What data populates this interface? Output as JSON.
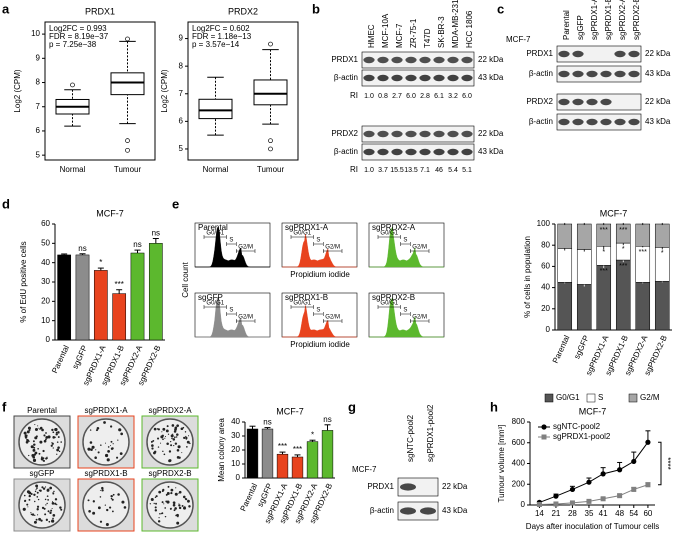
{
  "panel_labels": [
    "a",
    "b",
    "c",
    "d",
    "e",
    "f",
    "g",
    "h"
  ],
  "chart_data": [
    {
      "type": "box",
      "title": "PRDX1",
      "y_label": "Log2 (CPM)",
      "categories": [
        "Normal",
        "Tumour"
      ],
      "boxes": [
        {
          "low": 6.2,
          "q1": 6.7,
          "median": 7.0,
          "q3": 7.3,
          "high": 7.7,
          "outliers": [
            7.9
          ]
        },
        {
          "low": 6.3,
          "q1": 7.5,
          "median": 8.0,
          "q3": 8.4,
          "high": 9.7,
          "outliers": [
            9.8,
            5.6,
            5.2
          ]
        }
      ],
      "ylim": [
        4.8,
        10.5
      ],
      "yticks": [
        5,
        6,
        7,
        8,
        9,
        10
      ],
      "annotations": [
        "Log2FC = 0.993",
        "FDR = 8.19e−37",
        "p = 7.25e−38"
      ]
    },
    {
      "type": "box",
      "title": "PRDX2",
      "y_label": "Log2 (CPM)",
      "categories": [
        "Normal",
        "Tumour"
      ],
      "boxes": [
        {
          "low": 5.5,
          "q1": 6.1,
          "median": 6.4,
          "q3": 6.8,
          "high": 7.6,
          "outliers": []
        },
        {
          "low": 5.9,
          "q1": 6.6,
          "median": 7.0,
          "q3": 7.5,
          "high": 8.6,
          "outliers": [
            8.8,
            5.3,
            5.0
          ]
        }
      ],
      "ylim": [
        4.6,
        9.6
      ],
      "yticks": [
        5,
        6,
        7,
        8,
        9
      ],
      "annotations": [
        "Log2FC = 0.602",
        "FDR = 1.18e−13",
        "p = 3.57e−14"
      ]
    },
    {
      "type": "bar",
      "title": "MCF-7",
      "y_label": "% of EdU positive cells",
      "categories": [
        "Parental",
        "sgGFP",
        "sgPRDX1-A",
        "sgPRDX1-B",
        "sgPRDX2-A",
        "sgPRDX2-B"
      ],
      "values": [
        44,
        44,
        36,
        24,
        45,
        50
      ],
      "errors": [
        0.5,
        0.6,
        1.2,
        2,
        1.5,
        2.5
      ],
      "colors": [
        "#000000",
        "#8c8c8c",
        "#e8431e",
        "#e8431e",
        "#5cb82e",
        "#5cb82e"
      ],
      "annotations": [
        null,
        "ns",
        "*",
        "***",
        "ns",
        "ns"
      ],
      "ylim": [
        0,
        60
      ],
      "yticks": [
        0,
        10,
        20,
        30,
        40,
        50,
        60
      ]
    },
    {
      "type": "stacked_bar",
      "title": "MCF-7",
      "y_label": "% of cells in population",
      "categories": [
        "Parental",
        "sgGFP",
        "sgPRDX1-A",
        "sgPRDX1-B",
        "sgPRDX2-A",
        "sgPRDX2-B"
      ],
      "series": [
        {
          "name": "G0/G1",
          "color": "#555555",
          "values": [
            45,
            43,
            61,
            66,
            45,
            46
          ],
          "errors": [
            1,
            2,
            3,
            2,
            1,
            1
          ],
          "annotations": [
            null,
            null,
            "***",
            "***",
            null,
            null
          ]
        },
        {
          "name": "S",
          "color": "#ffffff",
          "values": [
            32,
            33,
            18,
            16,
            34,
            32
          ],
          "errors": [
            2,
            2,
            3,
            2,
            1,
            2
          ],
          "annotations": [
            null,
            null,
            "*",
            "*",
            "***",
            "*"
          ]
        },
        {
          "name": "G2/M",
          "color": "#a6a6a6",
          "values": [
            23,
            24,
            21,
            18,
            21,
            22
          ],
          "errors": [
            1,
            1,
            1,
            1,
            1,
            1
          ],
          "annotations": [
            null,
            null,
            "***",
            "***",
            null,
            null
          ]
        }
      ],
      "ylim": [
        0,
        100
      ],
      "yticks": [
        0,
        20,
        40,
        60,
        80,
        100
      ],
      "legend": "bottom"
    },
    {
      "type": "bar",
      "title": "MCF-7",
      "y_label": "Mean colony area",
      "categories": [
        "Parental",
        "sgGFP",
        "sgPRDX1-A",
        "sgPRDX1-B",
        "sgPRDX2-A",
        "sgPRDX2-B"
      ],
      "values": [
        35,
        35,
        17,
        15,
        26,
        34
      ],
      "errors": [
        2,
        1,
        1.5,
        1.5,
        1,
        4
      ],
      "colors": [
        "#000000",
        "#8c8c8c",
        "#e8431e",
        "#e8431e",
        "#5cb82e",
        "#5cb82e"
      ],
      "annotations": [
        null,
        "ns",
        "***",
        "***",
        "*",
        "ns"
      ],
      "ylim": [
        0,
        40
      ],
      "yticks": [
        0,
        10,
        20,
        30,
        40
      ]
    },
    {
      "type": "line",
      "title": "MCF-7",
      "x_label": "Days after inoculation of Tumour cells",
      "y_label": "Tumour volume [mm³]",
      "x": [
        14,
        21,
        28,
        35,
        41,
        48,
        54,
        60
      ],
      "xlim": [
        10,
        63
      ],
      "xticks": [
        14,
        21,
        28,
        35,
        41,
        48,
        54,
        60
      ],
      "ylim": [
        0,
        800
      ],
      "yticks": [
        0,
        200,
        400,
        600,
        800
      ],
      "series": [
        {
          "name": "sgNTC-pool2",
          "color": "#000000",
          "marker": "circle",
          "values": [
            25,
            85,
            150,
            220,
            300,
            340,
            420,
            605
          ],
          "errors": [
            10,
            20,
            30,
            40,
            60,
            70,
            90,
            110
          ]
        },
        {
          "name": "sgPRDX1-pool2",
          "color": "#808080",
          "marker": "square",
          "values": [
            5,
            10,
            20,
            35,
            60,
            90,
            150,
            195
          ],
          "errors": [
            2,
            3,
            5,
            8,
            10,
            15,
            20,
            20
          ]
        }
      ],
      "annotation": "****",
      "legend": "upper left"
    }
  ],
  "blot_b": {
    "columns": [
      "HMEC",
      "MCF-10A",
      "MCF-7",
      "ZR-75-1",
      "T47D",
      "SK-BR-3",
      "MDA-MB-231",
      "HCC 1806"
    ],
    "groups": [
      {
        "rows": [
          {
            "label": "PRDX1",
            "size": "22 kDa"
          },
          {
            "label": "β-actin",
            "size": "43 kDa"
          }
        ],
        "ri_label": "RI",
        "ri": [
          "1.0",
          "0.8",
          "2.7",
          "6.0",
          "2.8",
          "6.1",
          "3.2",
          "6.0"
        ]
      },
      {
        "rows": [
          {
            "label": "PRDX2",
            "size": "22 kDa"
          },
          {
            "label": "β-actin",
            "size": "43 kDa"
          }
        ],
        "ri_label": "RI",
        "ri": [
          "1.0",
          "3.7",
          "15.5",
          "13.5",
          "7.1",
          "46",
          "5.4",
          "5.1"
        ]
      }
    ]
  },
  "blot_c": {
    "cell_line": "MCF-7",
    "columns": [
      "Parental",
      "sgGFP",
      "sgPRDX1-A",
      "sgPRDX1-B",
      "sgPRDX2-A",
      "sgPRDX2-B"
    ],
    "rows": [
      {
        "label": "PRDX1",
        "size": "22 kDa"
      },
      {
        "label": "β-actin",
        "size": "43 kDa"
      },
      {
        "label": "PRDX2",
        "size": "22 kDa"
      },
      {
        "label": "β-actin",
        "size": "43 kDa"
      }
    ]
  },
  "flow_e": {
    "panels": [
      {
        "title": "Parental",
        "color": "#000000"
      },
      {
        "title": "sgPRDX1-A",
        "color": "#e8431e"
      },
      {
        "title": "sgPRDX2-A",
        "color": "#5cb82e"
      },
      {
        "title": "sgGFP",
        "color": "#8c8c8c"
      },
      {
        "title": "sgPRDX1-B",
        "color": "#e8431e"
      },
      {
        "title": "sgPRDX2-B",
        "color": "#5cb82e"
      }
    ],
    "gates": [
      "G0/G1",
      "S",
      "G2/M"
    ],
    "y_label": "Cell count",
    "x_label": "Propidium iodide"
  },
  "plates_f": {
    "plates": [
      {
        "label": "Parental",
        "border": "#444444"
      },
      {
        "label": "sgPRDX1-A",
        "border": "#e8431e"
      },
      {
        "label": "sgPRDX2-A",
        "border": "#5cb82e"
      },
      {
        "label": "sgGFP",
        "border": "#8c8c8c"
      },
      {
        "label": "sgPRDX1-B",
        "border": "#e8431e"
      },
      {
        "label": "sgPRDX2-B",
        "border": "#5cb82e"
      }
    ]
  },
  "blot_g": {
    "cell_line": "MCF-7",
    "columns": [
      "sgNTC-pool2",
      "sgPRDX1-pool2"
    ],
    "rows": [
      {
        "label": "PRDX1",
        "size": "22 kDa"
      },
      {
        "label": "β-actin",
        "size": "43 kDa"
      }
    ]
  }
}
